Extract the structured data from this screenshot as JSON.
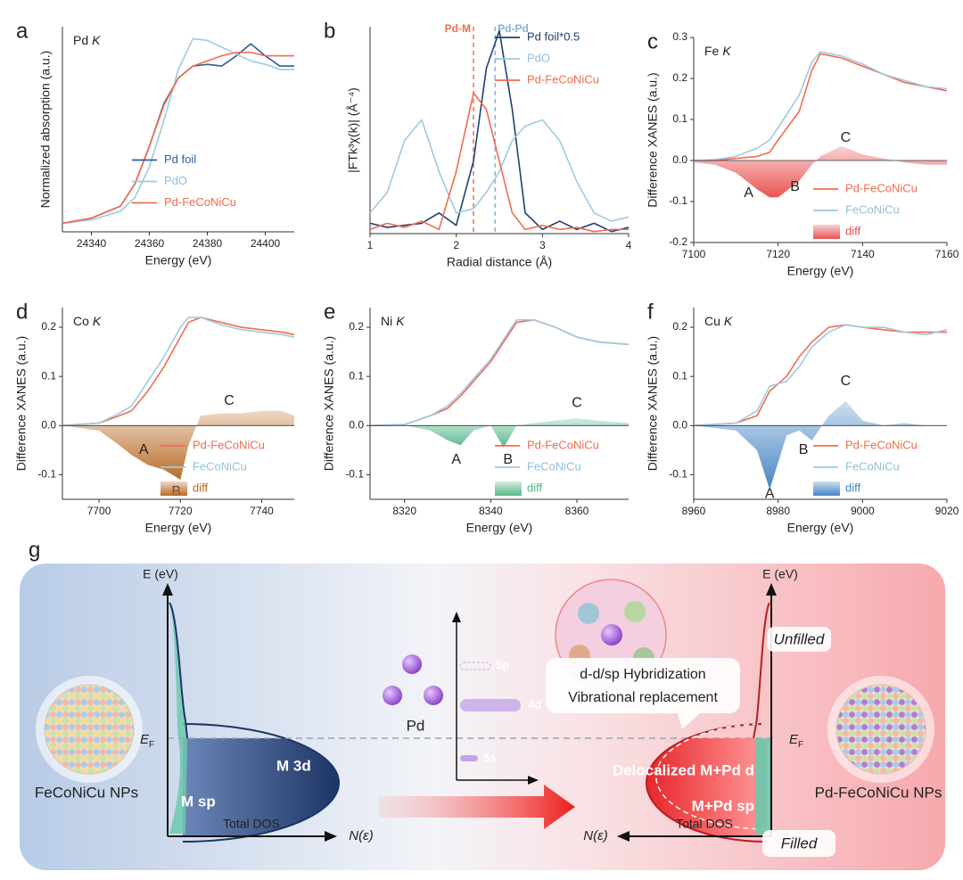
{
  "chart_data": [
    {
      "type": "line",
      "panel_label": "a",
      "element": "Pd",
      "edge": "K",
      "xlabel": "Energy (eV)",
      "ylabel": "Normalized absorption (a.u.)",
      "xlim": [
        24330,
        24410
      ],
      "xticks": [
        24340,
        24360,
        24380,
        24400
      ],
      "ylim": [
        0,
        1.2
      ],
      "yticks": [],
      "legend": "center",
      "x": [
        24330,
        24340,
        24350,
        24355,
        24360,
        24365,
        24370,
        24375,
        24380,
        24385,
        24390,
        24395,
        24400,
        24405,
        24410
      ],
      "series": [
        {
          "name": "Pd foil",
          "color": "#2f5d9e",
          "kind": "line",
          "values": [
            0.05,
            0.08,
            0.15,
            0.28,
            0.5,
            0.75,
            0.9,
            0.97,
            0.98,
            0.97,
            1.03,
            1.1,
            1.03,
            0.97,
            0.97
          ]
        },
        {
          "name": "PdO",
          "color": "#9ecae1",
          "kind": "line",
          "values": [
            0.05,
            0.07,
            0.12,
            0.2,
            0.38,
            0.65,
            0.95,
            1.13,
            1.12,
            1.08,
            1.04,
            1.0,
            0.98,
            0.95,
            0.95
          ]
        },
        {
          "name": "Pd-FeCoNiCu",
          "color": "#f26b4f",
          "kind": "line",
          "values": [
            0.05,
            0.08,
            0.15,
            0.28,
            0.5,
            0.74,
            0.9,
            0.97,
            1.0,
            1.03,
            1.05,
            1.05,
            1.03,
            1.03,
            1.03
          ]
        }
      ]
    },
    {
      "type": "line",
      "panel_label": "b",
      "xlabel": "Radial distance (Å)",
      "ylabel": "|FTk³χ(k)| (Å⁻⁴)",
      "xlim": [
        1,
        4
      ],
      "xticks": [
        1,
        2,
        3,
        4
      ],
      "ylim": [
        0,
        1.0
      ],
      "yticks": [],
      "legend": "upper right",
      "reference_lines": [
        {
          "label": "Pd-M",
          "x": 2.2,
          "color": "#f26b4f"
        },
        {
          "label": "Pd-Pd",
          "x": 2.45,
          "color": "#7fb3d9"
        }
      ],
      "x": [
        1,
        1.2,
        1.4,
        1.6,
        1.8,
        2.0,
        2.2,
        2.35,
        2.5,
        2.65,
        2.8,
        3.0,
        3.2,
        3.4,
        3.6,
        3.8,
        4.0
      ],
      "series": [
        {
          "name": "Pd foil*0.5",
          "color": "#1f3f73",
          "kind": "line",
          "values": [
            0.05,
            0.03,
            0.04,
            0.05,
            0.1,
            0.04,
            0.35,
            0.8,
            0.98,
            0.6,
            0.1,
            0.02,
            0.06,
            0.02,
            0.05,
            0.01,
            0.03
          ]
        },
        {
          "name": "PdO",
          "color": "#9ecae1",
          "kind": "line",
          "values": [
            0.1,
            0.2,
            0.45,
            0.55,
            0.3,
            0.1,
            0.12,
            0.2,
            0.3,
            0.45,
            0.52,
            0.55,
            0.45,
            0.25,
            0.1,
            0.06,
            0.08
          ]
        },
        {
          "name": "Pd-FeCoNiCu",
          "color": "#f26b4f",
          "kind": "line",
          "values": [
            0.02,
            0.05,
            0.03,
            0.06,
            0.02,
            0.3,
            0.68,
            0.6,
            0.35,
            0.1,
            0.02,
            0.04,
            0.02,
            0.03,
            0.01,
            0.02,
            0.02
          ]
        }
      ]
    },
    {
      "type": "line",
      "panel_label": "c",
      "element": "Fe",
      "edge": "K",
      "xlabel": "Energy (eV)",
      "ylabel": "Difference XANES (a.u.)",
      "xlim": [
        7100,
        7160
      ],
      "xticks": [
        7100,
        7120,
        7140,
        7160
      ],
      "ylim": [
        -0.2,
        0.3
      ],
      "yticks": [
        -0.2,
        -0.1,
        {
          "value": 0,
          "label": "0.0"
        },
        0.1,
        0.2,
        0.3
      ],
      "legend": "lower right",
      "annotations": [
        {
          "text": "A",
          "x": 7113,
          "y": -0.08
        },
        {
          "text": "B",
          "x": 7124,
          "y": -0.065
        },
        {
          "text": "C",
          "x": 7136,
          "y": 0.055
        }
      ],
      "x": [
        7100,
        7105,
        7110,
        7115,
        7118,
        7120,
        7125,
        7128,
        7130,
        7135,
        7140,
        7145,
        7150,
        7155,
        7160
      ],
      "series": [
        {
          "name": "Pd-FeCoNiCu",
          "color": "#f26b4f",
          "kind": "line",
          "values": [
            0,
            0,
            0.005,
            0.01,
            0.02,
            0.05,
            0.12,
            0.22,
            0.26,
            0.25,
            0.23,
            0.21,
            0.19,
            0.18,
            0.17
          ]
        },
        {
          "name": "FeCoNiCu",
          "color": "#9ecae1",
          "kind": "line",
          "values": [
            0,
            0.002,
            0.01,
            0.03,
            0.05,
            0.08,
            0.16,
            0.24,
            0.265,
            0.255,
            0.235,
            0.21,
            0.195,
            0.18,
            0.175
          ]
        },
        {
          "name": "diff",
          "color": "#e84a4a",
          "kind": "area",
          "values": [
            -0.005,
            -0.01,
            -0.03,
            -0.07,
            -0.09,
            -0.09,
            -0.05,
            -0.01,
            0.01,
            0.035,
            0.015,
            0.005,
            -0.005,
            -0.01,
            -0.01
          ]
        }
      ]
    },
    {
      "type": "line",
      "panel_label": "d",
      "element": "Co",
      "edge": "K",
      "xlabel": "Energy (eV)",
      "ylabel": "Difference XANES (a.u.)",
      "xlim": [
        7691,
        7748
      ],
      "xticks": [
        7700,
        7720,
        7740
      ],
      "ylim": [
        -0.15,
        0.24
      ],
      "yticks": [
        -0.1,
        {
          "value": 0,
          "label": "0.0"
        },
        0.1,
        0.2
      ],
      "legend": "lower right",
      "annotations": [
        {
          "text": "A",
          "x": 7711,
          "y": -0.05
        },
        {
          "text": "B",
          "x": 7719,
          "y": -0.135
        },
        {
          "text": "C",
          "x": 7732,
          "y": 0.05
        }
      ],
      "x": [
        7691,
        7700,
        7705,
        7708,
        7712,
        7716,
        7720,
        7722,
        7725,
        7730,
        7735,
        7740,
        7745,
        7748
      ],
      "series": [
        {
          "name": "Pd-FeCoNiCu",
          "color": "#f26b4f",
          "kind": "line",
          "values": [
            0,
            0.005,
            0.02,
            0.03,
            0.07,
            0.12,
            0.18,
            0.21,
            0.22,
            0.21,
            0.2,
            0.195,
            0.19,
            0.185
          ]
        },
        {
          "name": "FeCoNiCu",
          "color": "#9ecae1",
          "kind": "line",
          "values": [
            0,
            0.005,
            0.025,
            0.04,
            0.09,
            0.14,
            0.2,
            0.22,
            0.22,
            0.205,
            0.195,
            0.19,
            0.185,
            0.18
          ]
        },
        {
          "name": "diff",
          "color": "#b5651d",
          "kind": "area",
          "values": [
            0,
            -0.01,
            -0.04,
            -0.06,
            -0.08,
            -0.09,
            -0.11,
            -0.04,
            0.02,
            0.025,
            0.025,
            0.03,
            0.03,
            0.02
          ]
        }
      ]
    },
    {
      "type": "line",
      "panel_label": "e",
      "element": "Ni",
      "edge": "K",
      "xlabel": "Energy (eV)",
      "ylabel": "Difference XANES (a.u.)",
      "xlim": [
        8312,
        8372
      ],
      "xticks": [
        8320,
        8340,
        8360
      ],
      "ylim": [
        -0.15,
        0.24
      ],
      "yticks": [
        -0.1,
        {
          "value": 0,
          "label": "0.0"
        },
        0.1,
        0.2
      ],
      "legend": "lower right",
      "annotations": [
        {
          "text": "A",
          "x": 8332,
          "y": -0.07
        },
        {
          "text": "B",
          "x": 8344,
          "y": -0.07
        },
        {
          "text": "C",
          "x": 8360,
          "y": 0.045
        }
      ],
      "x": [
        8312,
        8320,
        8326,
        8330,
        8333,
        8336,
        8340,
        8343,
        8346,
        8350,
        8355,
        8360,
        8365,
        8372
      ],
      "series": [
        {
          "name": "Pd-FeCoNiCu",
          "color": "#f26b4f",
          "kind": "line",
          "values": [
            0,
            0.002,
            0.02,
            0.035,
            0.06,
            0.09,
            0.13,
            0.17,
            0.21,
            0.215,
            0.2,
            0.18,
            0.17,
            0.165
          ]
        },
        {
          "name": "FeCoNiCu",
          "color": "#9ecae1",
          "kind": "line",
          "values": [
            0,
            0.002,
            0.02,
            0.04,
            0.065,
            0.095,
            0.135,
            0.175,
            0.215,
            0.215,
            0.2,
            0.18,
            0.17,
            0.165
          ]
        },
        {
          "name": "diff",
          "color": "#4fb585",
          "kind": "area",
          "values": [
            0,
            0,
            -0.01,
            -0.03,
            -0.04,
            -0.01,
            0,
            -0.045,
            0,
            0.005,
            0.01,
            0.015,
            0.01,
            0.005
          ]
        }
      ]
    },
    {
      "type": "line",
      "panel_label": "f",
      "element": "Cu",
      "edge": "K",
      "xlabel": "Energy (eV)",
      "ylabel": "Difference XANES (a.u.)",
      "xlim": [
        8960,
        9020
      ],
      "xticks": [
        8960,
        8980,
        9000,
        9020
      ],
      "ylim": [
        -0.15,
        0.24
      ],
      "yticks": [
        -0.1,
        {
          "value": 0,
          "label": "0.0"
        },
        0.1,
        0.2
      ],
      "legend": "lower right",
      "annotations": [
        {
          "text": "A",
          "x": 8978,
          "y": -0.14
        },
        {
          "text": "B",
          "x": 8986,
          "y": -0.05
        },
        {
          "text": "C",
          "x": 8996,
          "y": 0.09
        }
      ],
      "x": [
        8960,
        8970,
        8975,
        8978,
        8982,
        8985,
        8988,
        8992,
        8996,
        9000,
        9005,
        9010,
        9015,
        9020
      ],
      "series": [
        {
          "name": "Pd-FeCoNiCu",
          "color": "#f26b4f",
          "kind": "line",
          "values": [
            0,
            0.005,
            0.02,
            0.07,
            0.1,
            0.14,
            0.17,
            0.2,
            0.205,
            0.2,
            0.195,
            0.19,
            0.19,
            0.19
          ]
        },
        {
          "name": "FeCoNiCu",
          "color": "#9ecae1",
          "kind": "line",
          "values": [
            0,
            0.005,
            0.03,
            0.08,
            0.09,
            0.12,
            0.16,
            0.19,
            0.205,
            0.2,
            0.2,
            0.19,
            0.185,
            0.195
          ]
        },
        {
          "name": "diff",
          "color": "#3d7fc1",
          "kind": "area",
          "values": [
            0,
            -0.01,
            -0.05,
            -0.13,
            -0.02,
            -0.01,
            -0.03,
            0.02,
            0.05,
            0.01,
            0,
            0.005,
            0,
            0
          ]
        }
      ]
    }
  ],
  "diagram": {
    "panel_label": "g",
    "left": {
      "axis_label": "E (eV)",
      "fermi": {
        "main": "E",
        "sub": "F"
      },
      "sp_label": "M sp",
      "d_label": "M 3d",
      "dos_label": "Total DOS",
      "n_label": "N(ε)",
      "particle": "FeCoNiCu NPs"
    },
    "middle": {
      "atom": "Pd",
      "levels": [
        "5p",
        "4d",
        "5s"
      ]
    },
    "right": {
      "axis_label": "E (eV)",
      "fermi": {
        "main": "E",
        "sub": "F"
      },
      "d_label": "Delocalized M+Pd d",
      "sp_label": "M+Pd sp",
      "dos_label": "Total DOS",
      "n_label": "N(ε)",
      "particle": "Pd-FeCoNiCu NPs",
      "hybrid": [
        "d-d/sp Hybridization",
        "Vibrational replacement"
      ],
      "unfilled": "Unfilled",
      "filled": "Filled"
    }
  }
}
